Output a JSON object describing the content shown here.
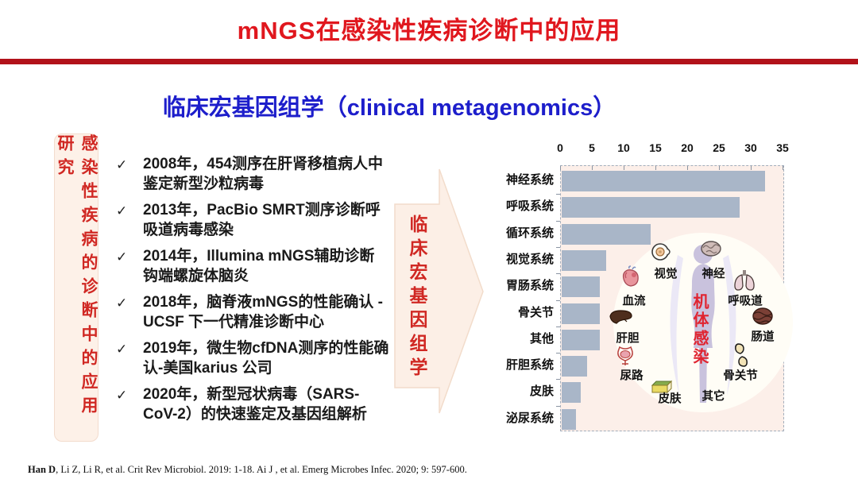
{
  "header": {
    "title": "mNGS在感染性疾病诊断中的应用"
  },
  "subtitle": {
    "text": "临床宏基因组学（clinical metagenomics）"
  },
  "side_tag": {
    "text": "感染性疾病的诊断中的应用研究"
  },
  "timeline": {
    "bullet": "✓",
    "items": [
      "2008年，454测序在肝肾移植病人中鉴定新型沙粒病毒",
      "2013年，PacBio SMRT测序诊断呼吸道病毒感染",
      "2014年，Illumina mNGS辅助诊断钩端螺旋体脑炎",
      "2018年，脑脊液mNGS的性能确认 - UCSF 下一代精准诊断中心",
      "2019年，微生物cfDNA测序的性能确认-美国karius 公司",
      "2020年，新型冠状病毒（SARS-CoV-2）的快速鉴定及基因组解析"
    ]
  },
  "arrow_tag": {
    "text": "临床宏基因组学"
  },
  "chart_data": {
    "type": "bar",
    "orientation": "horizontal",
    "categories": [
      "神经系统",
      "呼吸系统",
      "循环系统",
      "视觉系统",
      "胃肠系统",
      "骨关节",
      "其他",
      "肝胆系统",
      "皮肤",
      "泌尿系统"
    ],
    "values": [
      32,
      28,
      14,
      7,
      6,
      6,
      6,
      4,
      3,
      2.2
    ],
    "xlim": [
      0,
      35
    ],
    "xticks": [
      0,
      5,
      10,
      15,
      20,
      25,
      30,
      35
    ],
    "axis_position": "top",
    "grid": false,
    "legend": false,
    "bar_color": "#a9b6c8",
    "plot_bg": "#fcefe9"
  },
  "body_diagram": {
    "center_text": "机体感染",
    "organs": [
      {
        "name": "视觉",
        "icon": "eye-icon"
      },
      {
        "name": "神经",
        "icon": "brain-icon"
      },
      {
        "name": "血流",
        "icon": "heart-icon"
      },
      {
        "name": "呼吸道",
        "icon": "lungs-icon"
      },
      {
        "name": "肝胆",
        "icon": "liver-icon"
      },
      {
        "name": "肠道",
        "icon": "intestine-icon"
      },
      {
        "name": "尿路",
        "icon": "bladder-icon"
      },
      {
        "name": "骨关节",
        "icon": "joint-icon"
      },
      {
        "name": "皮肤",
        "icon": "skin-icon"
      },
      {
        "name": "其它",
        "icon": null
      }
    ]
  },
  "footer": {
    "citation_bold": "Han D",
    "citation_rest": ", Li Z, Li R, et al. Crit Rev Microbiol. 2019: 1-18. Ai J , et al. Emerg Microbes Infec. 2020; 9: 597-600."
  },
  "colors": {
    "title_red": "#e0171e",
    "rule_red": "#b2121a",
    "subtitle_blue": "#1d1ecb",
    "tag_bg": "#fdf1e8",
    "tag_text_red": "#d02823",
    "bar_fill": "#a9b6c8",
    "plot_bg": "#fcefe9",
    "circle_bg": "#fffdf6",
    "silhouette": "#c9c2dd",
    "center_text_red": "#e02430"
  }
}
